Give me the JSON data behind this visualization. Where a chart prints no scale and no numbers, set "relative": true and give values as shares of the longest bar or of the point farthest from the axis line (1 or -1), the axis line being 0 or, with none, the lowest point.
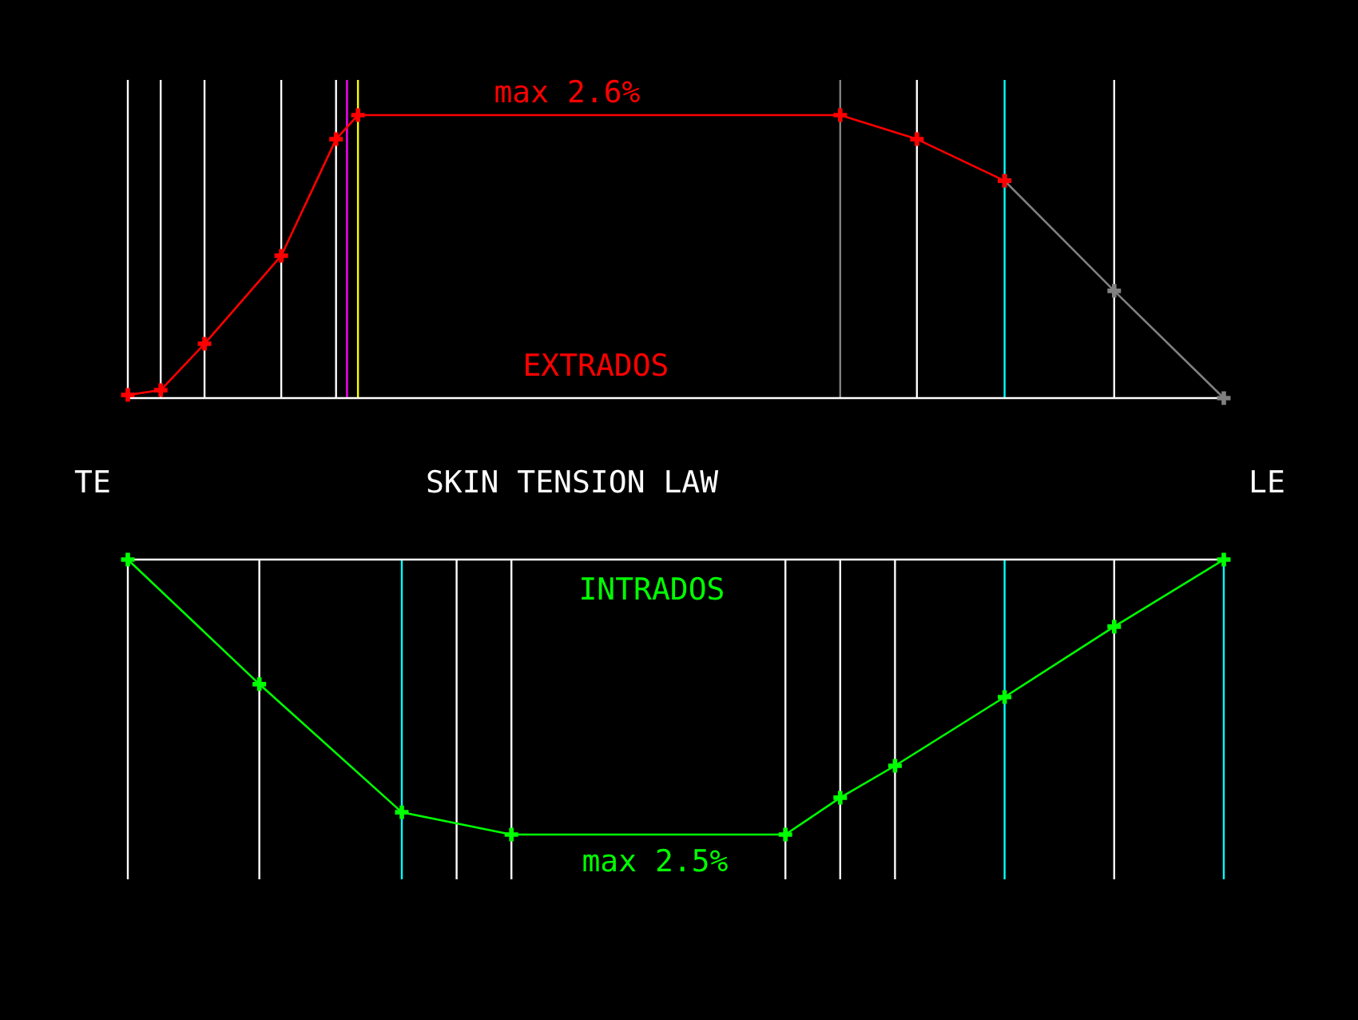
{
  "chart_data": [
    {
      "type": "line",
      "title": "SKIN TENSION LAW",
      "relative": true,
      "grid": "x",
      "marker": "cross",
      "line_style": "solid",
      "annotations": [
        "max 2.6%",
        "EXTRADOS",
        "TE",
        "LE"
      ],
      "categories": [
        null,
        null,
        null,
        null,
        null,
        null,
        null,
        null,
        null,
        null,
        null,
        null,
        null,
        null,
        null,
        null,
        null,
        null,
        null,
        null,
        null,
        null,
        null,
        null,
        null,
        null,
        null,
        null,
        null,
        null,
        null,
        null,
        null,
        null,
        null,
        null,
        null,
        null,
        null,
        null,
        null,
        null,
        null,
        null,
        null,
        null,
        null,
        null,
        null,
        null,
        null,
        null,
        null,
        null,
        null,
        null,
        null,
        null,
        null,
        null,
        null,
        null,
        null,
        null,
        null,
        null,
        null,
        null,
        null,
        null,
        null,
        null,
        null,
        null,
        null,
        null,
        null,
        null,
        null,
        null,
        null,
        null,
        null,
        null,
        null,
        null,
        null,
        null,
        null,
        null,
        null,
        null,
        null,
        null,
        null,
        null,
        null,
        null,
        null,
        null,
        null
      ],
      "series": [
        {
          "color": "#ff0000",
          "values": [
            0.011,
            null,
            null,
            0.028,
            null,
            null,
            null,
            0.192,
            null,
            null,
            null,
            null,
            null,
            null,
            0.503,
            null,
            null,
            null,
            null,
            0.915,
            null,
            1,
            null,
            null,
            null,
            null,
            null,
            null,
            null,
            null,
            null,
            null,
            null,
            null,
            null,
            null,
            null,
            null,
            null,
            null,
            null,
            null,
            null,
            null,
            null,
            null,
            null,
            null,
            null,
            null,
            null,
            null,
            null,
            null,
            null,
            null,
            null,
            null,
            null,
            null,
            null,
            null,
            null,
            null,
            null,
            1,
            null,
            null,
            null,
            null,
            null,
            null,
            0.915,
            null,
            null,
            null,
            null,
            null,
            null,
            null,
            0.768,
            null,
            null,
            null,
            null,
            null,
            null,
            null,
            null,
            null,
            null,
            null,
            null,
            null,
            null,
            null,
            null,
            null,
            null,
            null,
            null
          ]
        },
        {
          "color": "#808080",
          "values": [
            null,
            null,
            null,
            null,
            null,
            null,
            null,
            null,
            null,
            null,
            null,
            null,
            null,
            null,
            null,
            null,
            null,
            null,
            null,
            null,
            null,
            null,
            null,
            null,
            null,
            null,
            null,
            null,
            null,
            null,
            null,
            null,
            null,
            null,
            null,
            null,
            null,
            null,
            null,
            null,
            null,
            null,
            null,
            null,
            null,
            null,
            null,
            null,
            null,
            null,
            null,
            null,
            null,
            null,
            null,
            null,
            null,
            null,
            null,
            null,
            null,
            null,
            null,
            null,
            null,
            null,
            null,
            null,
            null,
            null,
            null,
            null,
            null,
            null,
            null,
            null,
            null,
            null,
            null,
            null,
            0.768,
            null,
            null,
            null,
            null,
            null,
            null,
            null,
            null,
            null,
            0.379,
            null,
            null,
            null,
            null,
            null,
            null,
            null,
            null,
            null,
            0
          ]
        }
      ]
    },
    {
      "type": "line",
      "relative": true,
      "grid": "x",
      "marker": "cross",
      "line_style": "solid",
      "annotations": [
        "INTRADOS",
        "max 2.5%"
      ],
      "categories": [
        null,
        null,
        null,
        null,
        null,
        null,
        null,
        null,
        null,
        null,
        null,
        null,
        null,
        null,
        null,
        null,
        null,
        null,
        null,
        null,
        null,
        null,
        null,
        null,
        null,
        null,
        null,
        null,
        null,
        null,
        null,
        null,
        null,
        null,
        null,
        null,
        null,
        null,
        null,
        null,
        null,
        null,
        null,
        null,
        null,
        null,
        null,
        null,
        null,
        null,
        null,
        null,
        null,
        null,
        null,
        null,
        null,
        null,
        null,
        null,
        null,
        null,
        null,
        null,
        null,
        null,
        null,
        null,
        null,
        null,
        null,
        null,
        null,
        null,
        null,
        null,
        null,
        null,
        null,
        null,
        null,
        null,
        null,
        null,
        null,
        null,
        null,
        null,
        null,
        null,
        null,
        null,
        null,
        null,
        null,
        null,
        null,
        null,
        null,
        null,
        null
      ],
      "series": [
        {
          "color": "#00ff00",
          "values": [
            0,
            null,
            null,
            null,
            null,
            null,
            null,
            null,
            null,
            null,
            null,
            null,
            -0.453,
            null,
            null,
            null,
            null,
            null,
            null,
            null,
            null,
            null,
            null,
            null,
            null,
            -0.919,
            null,
            null,
            null,
            null,
            null,
            null,
            null,
            null,
            null,
            -1,
            null,
            null,
            null,
            null,
            null,
            null,
            null,
            null,
            null,
            null,
            null,
            null,
            null,
            null,
            null,
            null,
            null,
            null,
            null,
            null,
            null,
            null,
            null,
            null,
            -1,
            null,
            null,
            null,
            null,
            -0.866,
            null,
            null,
            null,
            null,
            -0.75,
            null,
            null,
            null,
            null,
            null,
            null,
            null,
            null,
            null,
            -0.5,
            null,
            null,
            null,
            null,
            null,
            null,
            null,
            null,
            null,
            -0.244,
            null,
            null,
            null,
            null,
            null,
            null,
            null,
            null,
            null,
            0
          ]
        }
      ]
    }
  ]
}
